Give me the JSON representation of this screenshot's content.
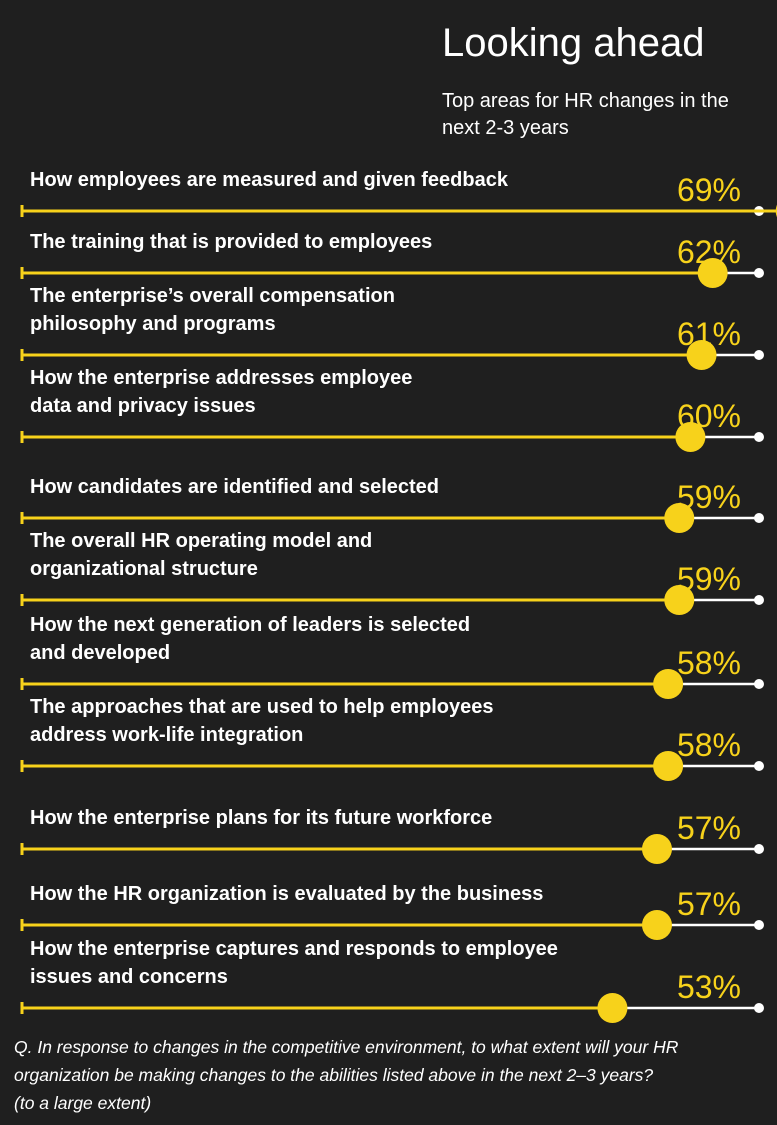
{
  "header": {
    "title": "Looking ahead",
    "subtitle": "Top areas for HR changes in the next 2-3 years"
  },
  "colors": {
    "background": "#1f1f1f",
    "accent": "#f7d21b",
    "track": "#ffffff",
    "text": "#ffffff"
  },
  "chart_data": {
    "type": "bar",
    "orientation": "horizontal",
    "title": "Looking ahead",
    "subtitle": "Top areas for HR changes in the next 2-3 years",
    "unit": "%",
    "xlim": [
      0,
      100
    ],
    "grid": false,
    "categories": [
      [
        "How employees are measured and given feedback"
      ],
      [
        "The training that is provided to employees"
      ],
      [
        "The enterprise’s overall compensation",
        "philosophy and programs"
      ],
      [
        "How the enterprise addresses employee",
        "data and privacy issues"
      ],
      [
        "How candidates are identified and selected"
      ],
      [
        "The overall HR operating model and",
        "organizational structure"
      ],
      [
        "How the next generation of leaders is selected",
        "and developed"
      ],
      [
        "The approaches that are used to help employees",
        "address work-life integration"
      ],
      [
        "How the enterprise plans for its future workforce"
      ],
      [
        "How the HR organization is evaluated by the business"
      ],
      [
        "How the enterprise captures and responds to employee",
        "issues and concerns"
      ]
    ],
    "values": [
      69,
      62,
      61,
      60,
      59,
      59,
      58,
      58,
      57,
      57,
      53
    ],
    "value_labels": [
      "69%",
      "62%",
      "61%",
      "60%",
      "59%",
      "59%",
      "58%",
      "58%",
      "57%",
      "57%",
      "53%"
    ]
  },
  "footnote": {
    "line1": "Q. In response to changes in the competitive environment, to what extent will your HR",
    "line2": "organization be making changes to the abilities listed above in the next 2–3 years?",
    "line3": "(to a large extent)"
  }
}
